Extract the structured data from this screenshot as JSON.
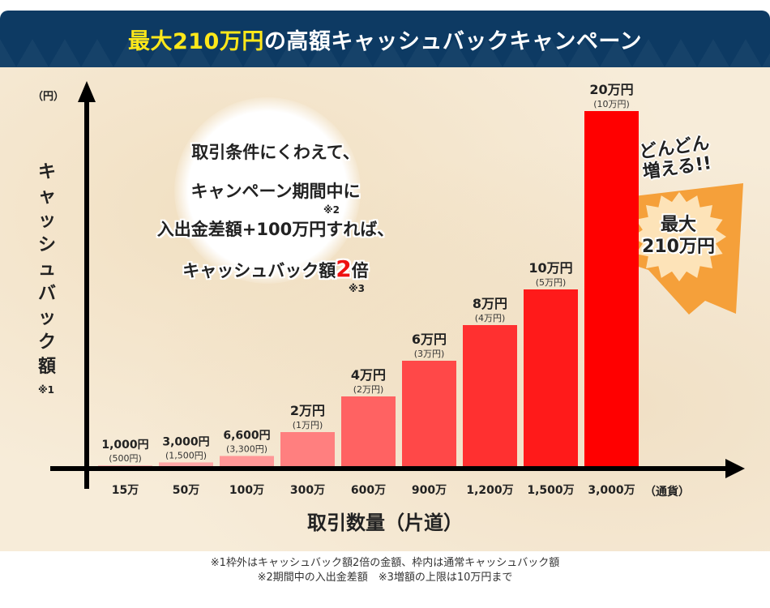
{
  "header": {
    "title_highlight": "最大210万円",
    "title_rest": "の高額キャッシュバックキャンペーン",
    "colors": {
      "background": "#0d3a63",
      "highlight": "#ffe81a",
      "text": "#ffffff"
    }
  },
  "callout": {
    "line1": "取引条件にくわえて、",
    "line2": "キャンペーン期間中に",
    "line3": "入出金差額+100万円すれば、",
    "line4_prefix": "キャッシュバック額",
    "line4_number": "2",
    "line4_suffix": "倍",
    "note2": "※2",
    "note3": "※3"
  },
  "badge": {
    "exclaim_line1": "どんどん",
    "exclaim_line2": "増える!!",
    "burst_line1": "最大",
    "burst_line2": "210万円",
    "burst_color": "#f5a03a"
  },
  "chart_data": {
    "type": "bar",
    "title": "最大210万円の高額キャッシュバックキャンペーン",
    "xlabel": "取引数量（片道）",
    "xunit": "（通貨）",
    "ylabel": "キャッシュバック額",
    "ylabel_note": "※1",
    "yunit": "（円）",
    "categories": [
      "15万",
      "50万",
      "100万",
      "300万",
      "600万",
      "900万",
      "1,200万",
      "1,500万",
      "3,000万"
    ],
    "series": [
      {
        "name": "キャッシュバック額2倍",
        "values": [
          1000,
          3000,
          6600,
          20000,
          40000,
          60000,
          80000,
          100000,
          200000
        ],
        "labels": [
          "1,000円",
          "3,000円",
          "6,600円",
          "2万円",
          "4万円",
          "6万円",
          "8万円",
          "10万円",
          "20万円"
        ]
      },
      {
        "name": "通常キャッシュバック額",
        "values": [
          500,
          1500,
          3300,
          10000,
          20000,
          30000,
          40000,
          50000,
          100000
        ],
        "labels": [
          "(500円)",
          "(1,500円)",
          "(3,300円)",
          "(1万円)",
          "(2万円)",
          "(3万円)",
          "(4万円)",
          "(5万円)",
          "(10万円)"
        ]
      }
    ],
    "bar_colors": [
      "#ffb3b3",
      "#ffa6a6",
      "#ff9797",
      "#ff7f7f",
      "#ff6262",
      "#ff4848",
      "#ff3030",
      "#ff1a1a",
      "#ff0000"
    ],
    "ylim": [
      0,
      200000
    ],
    "grid": false,
    "legend": "none"
  },
  "footnotes": {
    "line1": "※1枠外はキャッシュバック額2倍の金額、枠内は通常キャッシュバック額",
    "line2": "※2期間中の入出金差額　※3増額の上限は10万円まで"
  }
}
